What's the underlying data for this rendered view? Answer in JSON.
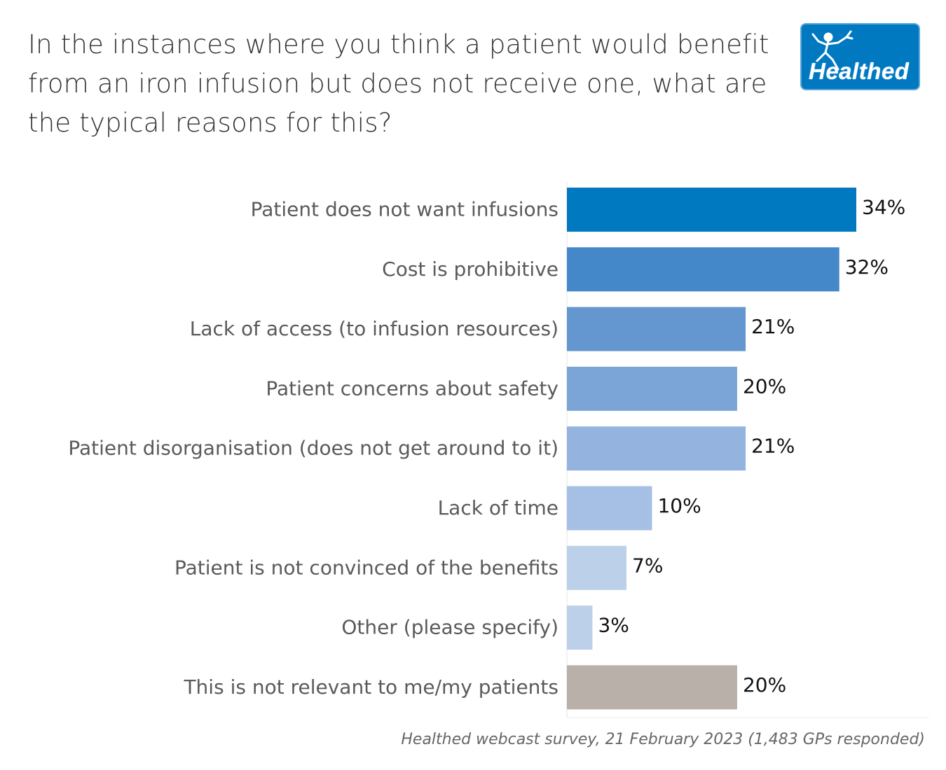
{
  "title": "In the instances where you think a patient would benefit from an iron infusion but does not receive one, what are the typical reasons for this?",
  "logo": {
    "text": "Healthed",
    "icon": "runner-figure-icon"
  },
  "source": "Healthed webcast survey, 21 February 2023 (1,483 GPs responded)",
  "chart_data": {
    "type": "bar",
    "orientation": "horizontal",
    "title": "In the instances where you think a patient would benefit from an iron infusion but does not receive one, what are the typical reasons for this?",
    "xlabel": "",
    "ylabel": "",
    "xlim": [
      0,
      34
    ],
    "categories": [
      "Patient does not want infusions",
      "Cost is prohibitive",
      "Lack of access (to infusion resources)",
      "Patient concerns about safety",
      "Patient disorganisation (does not get around to it)",
      "Lack of time",
      "Patient is not convinced of the benefits",
      "Other (please specify)",
      "This is not relevant to me/my patients"
    ],
    "values": [
      34,
      32,
      21,
      20,
      21,
      10,
      7,
      3,
      20
    ],
    "labels": [
      "34%",
      "32%",
      "21%",
      "20%",
      "21%",
      "10%",
      "7%",
      "3%",
      "20%"
    ],
    "colors": [
      "#0079c1",
      "#4488c9",
      "#6496cf",
      "#7aa5d6",
      "#94b3de",
      "#a6bfe4",
      "#bdd0ea",
      "#bdd0ea",
      "#bab0aa"
    ]
  }
}
